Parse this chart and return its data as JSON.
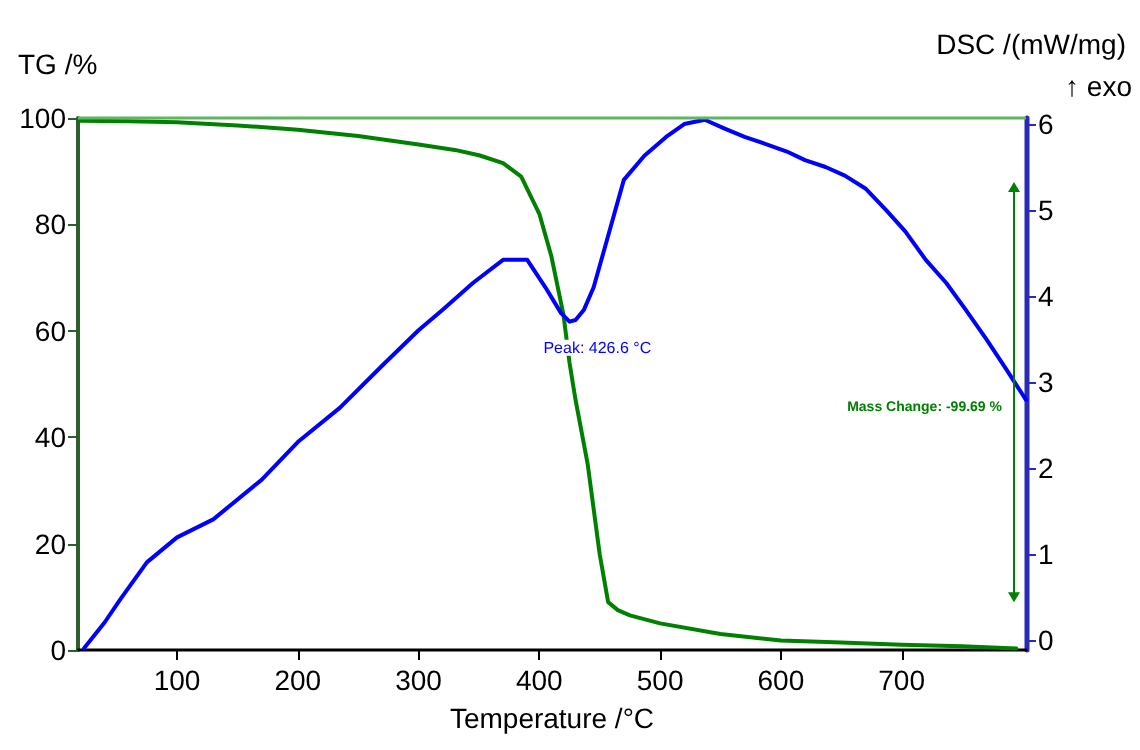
{
  "chart_data": {
    "type": "line",
    "xlabel": "Temperature /°C",
    "ylabel": "TG /%",
    "y2label": "DSC /(mW/mg)",
    "xlim": [
      18,
      803
    ],
    "xticks": [
      100,
      200,
      300,
      400,
      500,
      600,
      700
    ],
    "ylim": [
      0,
      100
    ],
    "yticks": [
      0,
      20,
      40,
      60,
      80,
      100
    ],
    "y2lim": [
      -0.12,
      6.07
    ],
    "y2ticks": [
      0,
      1,
      2,
      3,
      4,
      5,
      6
    ],
    "grid": false,
    "marker": "none",
    "line_style": "solid",
    "series": [
      {
        "color": "#008000",
        "x": [
          20,
          60,
          100,
          150,
          200,
          250,
          300,
          330,
          350,
          370,
          385,
          400,
          410,
          420,
          425,
          430,
          440,
          450,
          457,
          465,
          475,
          500,
          550,
          600,
          650,
          700,
          750,
          795
        ],
        "values": [
          99.5,
          99.4,
          99.2,
          98.6,
          97.8,
          96.6,
          95,
          94,
          93,
          91.5,
          89,
          82,
          74,
          63,
          54,
          47,
          35,
          18,
          9,
          7.5,
          6.5,
          5,
          3,
          1.8,
          1.4,
          1,
          0.7,
          0.3
        ]
      },
      {
        "color": "#0000ff",
        "axis": "y2",
        "x": [
          23,
          40,
          53,
          75,
          100,
          130,
          170,
          200,
          235,
          270,
          300,
          320,
          345,
          370,
          390,
          405,
          418,
          425,
          430,
          437,
          445,
          453,
          462,
          470,
          487,
          505,
          520,
          537,
          553,
          570,
          587,
          605,
          620,
          637,
          653,
          670,
          687,
          703,
          720,
          737,
          753,
          770,
          787,
          803
        ],
        "values": [
          -0.1,
          0.2,
          0.47,
          0.9,
          1.19,
          1.4,
          1.86,
          2.3,
          2.7,
          3.19,
          3.6,
          3.84,
          4.15,
          4.42,
          4.42,
          4.1,
          3.8,
          3.7,
          3.72,
          3.84,
          4.1,
          4.5,
          4.95,
          5.35,
          5.63,
          5.85,
          6.0,
          6.05,
          5.95,
          5.85,
          5.77,
          5.68,
          5.58,
          5.5,
          5.4,
          5.25,
          5.0,
          4.75,
          4.42,
          4.15,
          3.84,
          3.5,
          3.14,
          2.79
        ]
      }
    ],
    "ref_lines": [
      {
        "axis": "y",
        "value": 100,
        "color": "#5cb85c"
      }
    ],
    "annotations": [
      {
        "text": "Peak: 426.6 °C",
        "x": 426.6,
        "y": 61.7
      },
      "Mass Change: -99.69 %",
      "↑ exo"
    ]
  }
}
